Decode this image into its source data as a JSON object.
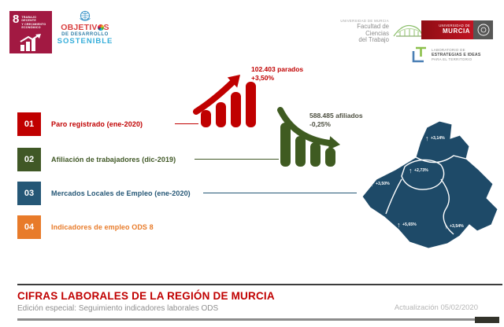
{
  "icons": {
    "up_arrow": "↑"
  },
  "header": {
    "sdg_badge": {
      "number": "8",
      "label_lines": [
        "TRABAJO DECENTE",
        "Y CRECIMIENTO",
        "ECONÓMICO"
      ],
      "color": "#A21942"
    },
    "ods_logo": {
      "title_start": "OBJETIV",
      "title_end": "S",
      "line2": "DE DESARROLLO",
      "line3": "SOSTENIBLE",
      "title_color": "#D93F3F",
      "line2_color": "#2E7DA6",
      "line3_color": "#35AEDA"
    },
    "faculty_logo": {
      "line1": "UNIVERSIDAD DE MURCIA",
      "line2": "Facultad de Ciencias",
      "line3": "del Trabajo"
    },
    "um_logo": {
      "line1": "UNIVERSIDAD DE",
      "line2": "MURCIA"
    },
    "lab_logo": {
      "line1": "LABORATORIO DE",
      "line2": "ESTRATEGIAS E IDEAS",
      "line3": "PARA EL TERRITORIO"
    }
  },
  "indicators": [
    {
      "number": "01",
      "label": "Paro registrado (ene-2020)",
      "color": "#C00000"
    },
    {
      "number": "02",
      "label": "Afiliación de trabajadores (dic-2019)",
      "color": "#405826"
    },
    {
      "number": "03",
      "label": "Mercados Locales de Empleo (ene-2020)",
      "color": "#255776"
    },
    {
      "number": "04",
      "label": "Indicadores de empleo ODS 8",
      "color": "#E87B2A"
    }
  ],
  "chart_data": [
    {
      "type": "bar",
      "name": "paro_registrado",
      "trend": "up",
      "annotation": "102.403 parados",
      "change": "+3,50%",
      "values_relative": [
        22,
        32,
        45,
        58
      ],
      "color": "#C00000",
      "text_color": "#C00000"
    },
    {
      "type": "bar",
      "name": "afiliacion_trabajadores",
      "trend": "down",
      "annotation": "588.485 afiliados",
      "change": "-0,25%",
      "values_relative": [
        56,
        39,
        31,
        24
      ],
      "color": "#3F5B21",
      "text_color": "#4D4F40"
    },
    {
      "type": "map",
      "name": "mercados_locales_empleo",
      "color": "#1E4A68",
      "zones": [
        {
          "zone": "norte",
          "change": "+3,14%"
        },
        {
          "zone": "centro",
          "change": "+2,73%"
        },
        {
          "zone": "oeste",
          "change": "+3,50%"
        },
        {
          "zone": "sur",
          "change": "+5,65%"
        },
        {
          "zone": "sureste",
          "change": "+3,54%"
        }
      ]
    }
  ],
  "footer": {
    "title": "CIFRAS LABORALES DE LA REGIÓN DE MURCIA",
    "title_color": "#C00000",
    "subtitle": "Edición especial: Seguimiento indicadores laborales ODS",
    "updated": "Actualización 05/02/2020"
  }
}
